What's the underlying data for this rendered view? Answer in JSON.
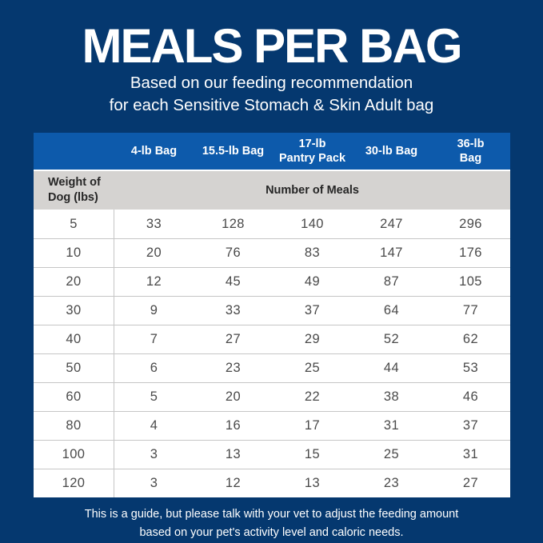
{
  "title": "MEALS PER BAG",
  "subtitle": {
    "line1": "Based on our feeding recommendation",
    "line2": "for each Sensitive Stomach & Skin Adult bag"
  },
  "table": {
    "columns": [
      "4-lb Bag",
      "15.5-lb Bag",
      "17-lb\nPantry Pack",
      "30-lb Bag",
      "36-lb\nBag"
    ],
    "row_header": "Weight of\nDog (lbs)",
    "meals_header": "Number of Meals"
  },
  "footer": {
    "line1": "This is a guide, but please talk with your vet to adjust the feeding amount",
    "line2": "based on your pet's activity level and caloric needs."
  },
  "colors": {
    "background_navy": "#05386F",
    "header_blue": "#0D5AAB",
    "subheader_gray": "#D5D3D1",
    "row_white": "#FFFFFF",
    "grid_line": "#C6C6C6",
    "dark_text": "#262626",
    "number_text": "#4A4A4A",
    "white_text": "#FFFFFF"
  },
  "chart_data": {
    "type": "table",
    "title": "MEALS PER BAG",
    "subtitle": "Based on our feeding recommendation for each Sensitive Stomach & Skin Adult bag",
    "row_label": "Weight of Dog (lbs)",
    "value_label": "Number of Meals",
    "columns": [
      "4-lb Bag",
      "15.5-lb Bag",
      "17-lb Pantry Pack",
      "30-lb Bag",
      "36-lb Bag"
    ],
    "rows": [
      [
        5,
        33,
        128,
        140,
        247,
        296
      ],
      [
        10,
        20,
        76,
        83,
        147,
        176
      ],
      [
        20,
        12,
        45,
        49,
        87,
        105
      ],
      [
        30,
        9,
        33,
        37,
        64,
        77
      ],
      [
        40,
        7,
        27,
        29,
        52,
        62
      ],
      [
        50,
        6,
        23,
        25,
        44,
        53
      ],
      [
        60,
        5,
        20,
        22,
        38,
        46
      ],
      [
        80,
        4,
        16,
        17,
        31,
        37
      ],
      [
        100,
        3,
        13,
        15,
        25,
        31
      ],
      [
        120,
        3,
        12,
        13,
        23,
        27
      ]
    ],
    "note": "This is a guide, but please talk with your vet to adjust the feeding amount based on your pet's activity level and caloric needs."
  }
}
